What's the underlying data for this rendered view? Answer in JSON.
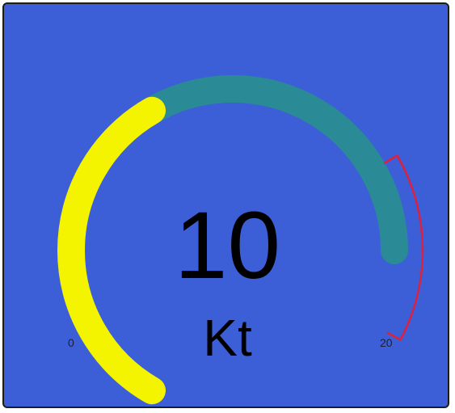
{
  "gauge": {
    "value": "10",
    "value_number": 10,
    "unit": "Kt",
    "min_label": "0",
    "max_label": "20",
    "min": 0,
    "max": 20,
    "colors": {
      "background": "#3c5fd7",
      "progress": "#f5f400",
      "track": "#2a8a96",
      "marker": "#e0203a",
      "text": "#000000"
    }
  }
}
